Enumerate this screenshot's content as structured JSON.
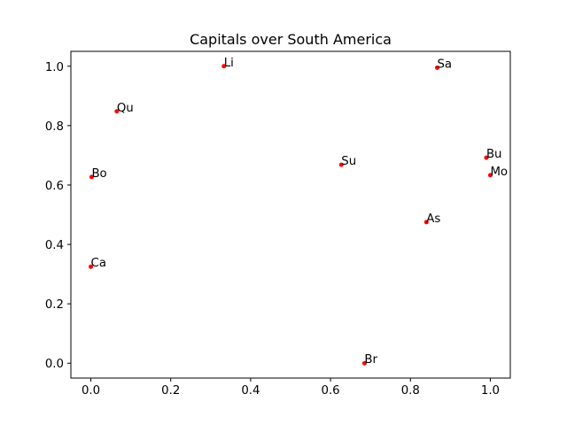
{
  "chart_data": {
    "type": "scatter",
    "title": "Capitals over South America",
    "xlabel": "",
    "ylabel": "",
    "xlim": [
      -0.05,
      1.05
    ],
    "ylim": [
      -0.05,
      1.05
    ],
    "xticks": [
      "0.0",
      "0.2",
      "0.4",
      "0.6",
      "0.8",
      "1.0"
    ],
    "yticks": [
      "0.0",
      "0.2",
      "0.4",
      "0.6",
      "0.8",
      "1.0"
    ],
    "grid": false,
    "legend": "none",
    "marker_color": "#ff0000",
    "points": [
      {
        "label": "Li",
        "x": 0.333,
        "y": 1.0
      },
      {
        "label": "Sa",
        "x": 0.867,
        "y": 0.995
      },
      {
        "label": "Qu",
        "x": 0.065,
        "y": 0.848
      },
      {
        "label": "Bu",
        "x": 0.99,
        "y": 0.692
      },
      {
        "label": "Su",
        "x": 0.627,
        "y": 0.668
      },
      {
        "label": "Mo",
        "x": 1.0,
        "y": 0.633
      },
      {
        "label": "Bo",
        "x": 0.002,
        "y": 0.627
      },
      {
        "label": "As",
        "x": 0.84,
        "y": 0.475
      },
      {
        "label": "Ca",
        "x": 0.0,
        "y": 0.325
      },
      {
        "label": "Br",
        "x": 0.685,
        "y": 0.0
      }
    ]
  }
}
